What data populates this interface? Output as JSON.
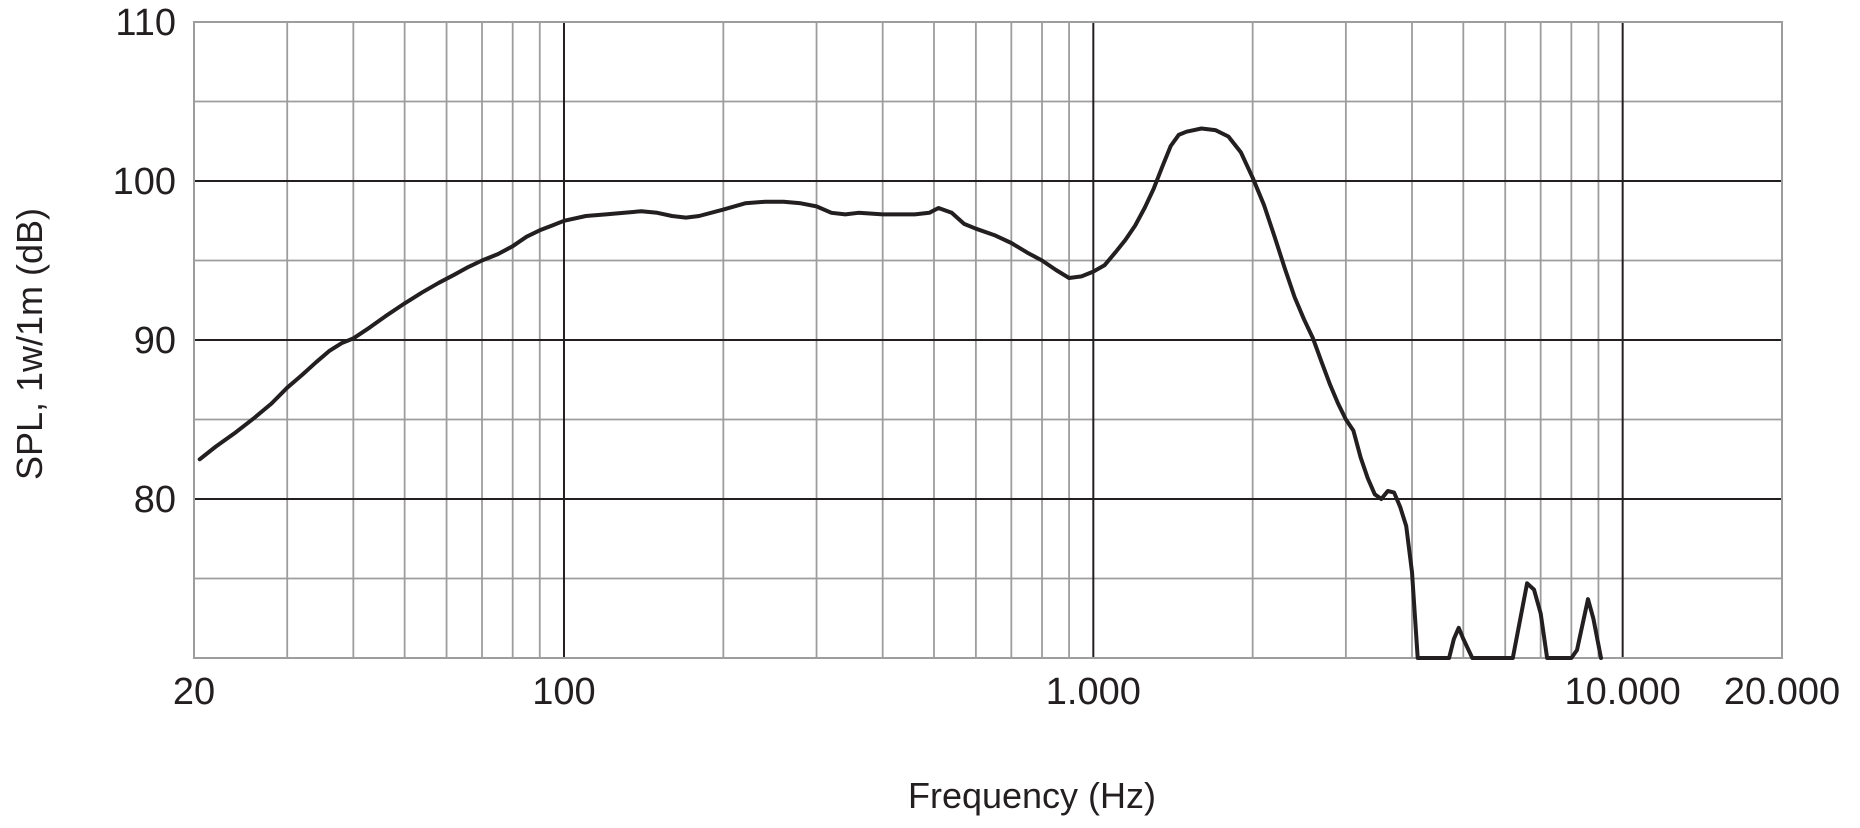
{
  "chart_data": {
    "type": "line",
    "title": "",
    "xlabel": "Frequency (Hz)",
    "ylabel": "SPL, 1w/1m (dB)",
    "xscale": "log",
    "xlim": [
      20,
      20000
    ],
    "ylim": [
      70,
      110
    ],
    "grid": true,
    "legend": "none",
    "x_ticks": [
      {
        "value": 20,
        "label": "20"
      },
      {
        "value": 100,
        "label": "100"
      },
      {
        "value": 1000,
        "label": "1.000"
      },
      {
        "value": 10000,
        "label": "10.000"
      },
      {
        "value": 20000,
        "label": "20.000"
      }
    ],
    "y_ticks": [
      {
        "value": 80,
        "label": "80"
      },
      {
        "value": 90,
        "label": "90"
      },
      {
        "value": 100,
        "label": "100"
      },
      {
        "value": 110,
        "label": "110"
      }
    ],
    "colors": {
      "line": "#231f20",
      "grid_major": "#231f20",
      "grid_minor": "#9d9d9d"
    },
    "series": [
      {
        "values_xy": [
          [
            20.5,
            82.5
          ],
          [
            22,
            83.3
          ],
          [
            24,
            84.2
          ],
          [
            26,
            85.1
          ],
          [
            28,
            86.0
          ],
          [
            30,
            87.0
          ],
          [
            32,
            87.8
          ],
          [
            34,
            88.6
          ],
          [
            36,
            89.3
          ],
          [
            38,
            89.8
          ],
          [
            40,
            90.1
          ],
          [
            43,
            90.8
          ],
          [
            46,
            91.5
          ],
          [
            50,
            92.3
          ],
          [
            54,
            93.0
          ],
          [
            58,
            93.6
          ],
          [
            62,
            94.1
          ],
          [
            66,
            94.6
          ],
          [
            70,
            95.0
          ],
          [
            75,
            95.4
          ],
          [
            80,
            95.9
          ],
          [
            85,
            96.5
          ],
          [
            90,
            96.9
          ],
          [
            95,
            97.2
          ],
          [
            100,
            97.5
          ],
          [
            110,
            97.8
          ],
          [
            120,
            97.9
          ],
          [
            130,
            98.0
          ],
          [
            140,
            98.1
          ],
          [
            150,
            98.0
          ],
          [
            160,
            97.8
          ],
          [
            170,
            97.7
          ],
          [
            180,
            97.8
          ],
          [
            200,
            98.2
          ],
          [
            220,
            98.6
          ],
          [
            240,
            98.7
          ],
          [
            260,
            98.7
          ],
          [
            280,
            98.6
          ],
          [
            300,
            98.4
          ],
          [
            320,
            98.0
          ],
          [
            340,
            97.9
          ],
          [
            360,
            98.0
          ],
          [
            400,
            97.9
          ],
          [
            430,
            97.9
          ],
          [
            460,
            97.9
          ],
          [
            490,
            98.0
          ],
          [
            510,
            98.3
          ],
          [
            540,
            98.0
          ],
          [
            570,
            97.3
          ],
          [
            600,
            97.0
          ],
          [
            650,
            96.6
          ],
          [
            700,
            96.1
          ],
          [
            750,
            95.5
          ],
          [
            800,
            95.0
          ],
          [
            850,
            94.4
          ],
          [
            900,
            93.9
          ],
          [
            950,
            94.0
          ],
          [
            1000,
            94.3
          ],
          [
            1050,
            94.7
          ],
          [
            1100,
            95.5
          ],
          [
            1150,
            96.3
          ],
          [
            1200,
            97.2
          ],
          [
            1250,
            98.3
          ],
          [
            1300,
            99.5
          ],
          [
            1350,
            100.9
          ],
          [
            1400,
            102.2
          ],
          [
            1450,
            102.9
          ],
          [
            1500,
            103.1
          ],
          [
            1600,
            103.3
          ],
          [
            1700,
            103.2
          ],
          [
            1800,
            102.8
          ],
          [
            1900,
            101.8
          ],
          [
            2000,
            100.2
          ],
          [
            2100,
            98.5
          ],
          [
            2200,
            96.5
          ],
          [
            2300,
            94.5
          ],
          [
            2400,
            92.7
          ],
          [
            2500,
            91.3
          ],
          [
            2600,
            90.1
          ],
          [
            2700,
            88.6
          ],
          [
            2800,
            87.2
          ],
          [
            2900,
            86.0
          ],
          [
            3000,
            85.0
          ],
          [
            3100,
            84.3
          ],
          [
            3200,
            82.6
          ],
          [
            3300,
            81.3
          ],
          [
            3400,
            80.3
          ],
          [
            3500,
            80.0
          ],
          [
            3600,
            80.5
          ],
          [
            3700,
            80.4
          ],
          [
            3800,
            79.5
          ],
          [
            3900,
            78.3
          ],
          [
            4000,
            75.4
          ],
          [
            4100,
            70.0
          ],
          [
            4700,
            70.0
          ],
          [
            4800,
            71.2
          ],
          [
            4900,
            71.9
          ],
          [
            5000,
            71.2
          ],
          [
            5200,
            70.0
          ],
          [
            6200,
            70.0
          ],
          [
            6600,
            74.7
          ],
          [
            6800,
            74.3
          ],
          [
            7000,
            72.8
          ],
          [
            7200,
            70.0
          ],
          [
            8000,
            70.0
          ],
          [
            8200,
            70.5
          ],
          [
            8600,
            73.7
          ],
          [
            8800,
            72.5
          ],
          [
            9100,
            70.0
          ]
        ]
      }
    ]
  }
}
